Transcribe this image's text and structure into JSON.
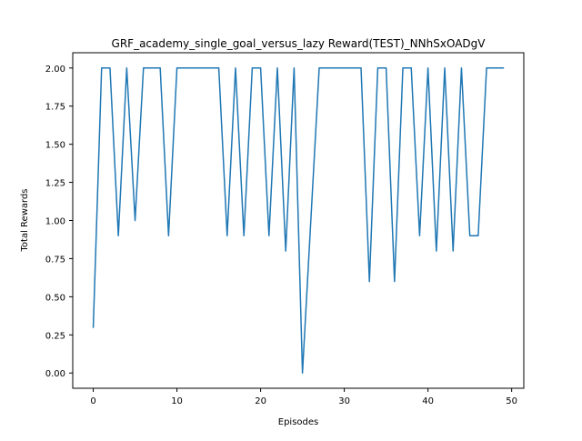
{
  "chart_data": {
    "type": "line",
    "title": "GRF_academy_single_goal_versus_lazy Reward(TEST)_NNhSxOADgV",
    "xlabel": "Episodes",
    "ylabel": "Total Rewards",
    "xlim": [
      -2.45,
      51.45
    ],
    "ylim": [
      -0.1,
      2.1
    ],
    "xticks": [
      0,
      10,
      20,
      30,
      40,
      50
    ],
    "yticks": [
      0.0,
      0.25,
      0.5,
      0.75,
      1.0,
      1.25,
      1.5,
      1.75,
      2.0
    ],
    "xtick_labels": [
      "0",
      "10",
      "20",
      "30",
      "40",
      "50"
    ],
    "ytick_labels": [
      "0.00",
      "0.25",
      "0.50",
      "0.75",
      "1.00",
      "1.25",
      "1.50",
      "1.75",
      "2.00"
    ],
    "grid": false,
    "colors": {
      "line": "#1f77b4",
      "axes": "#000000",
      "background": "#ffffff"
    },
    "series": [
      {
        "x": [
          0,
          1,
          2,
          3,
          4,
          5,
          6,
          7,
          8,
          9,
          10,
          11,
          12,
          13,
          14,
          15,
          16,
          17,
          18,
          19,
          20,
          21,
          22,
          23,
          24,
          25,
          26,
          27,
          28,
          29,
          30,
          31,
          32,
          33,
          34,
          35,
          36,
          37,
          38,
          39,
          40,
          41,
          42,
          43,
          44,
          45,
          46,
          47,
          48,
          49
        ],
        "values": [
          0.3,
          2.0,
          2.0,
          0.9,
          2.0,
          1.0,
          2.0,
          2.0,
          2.0,
          0.9,
          2.0,
          2.0,
          2.0,
          2.0,
          2.0,
          2.0,
          0.9,
          2.0,
          0.9,
          2.0,
          2.0,
          0.9,
          2.0,
          0.8,
          2.0,
          0.0,
          1.0,
          2.0,
          2.0,
          2.0,
          2.0,
          2.0,
          2.0,
          0.6,
          2.0,
          2.0,
          0.6,
          2.0,
          2.0,
          0.9,
          2.0,
          0.8,
          2.0,
          0.8,
          2.0,
          0.9,
          0.9,
          2.0,
          2.0,
          2.0
        ]
      }
    ]
  }
}
